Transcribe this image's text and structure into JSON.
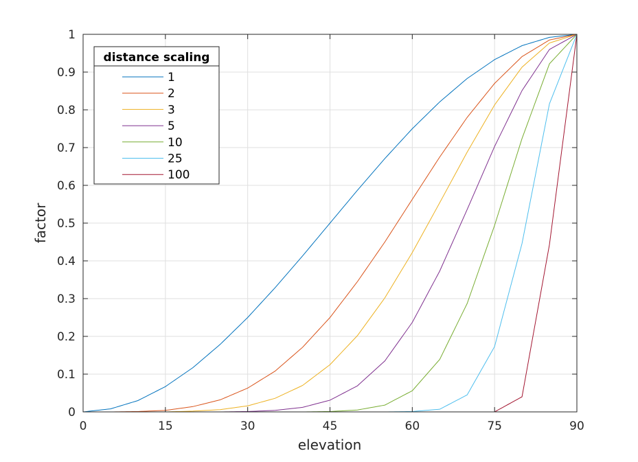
{
  "chart_data": {
    "type": "line",
    "xlabel": "elevation",
    "ylabel": "factor",
    "xlim": [
      0,
      90
    ],
    "ylim": [
      0,
      1
    ],
    "xticks": [
      0,
      15,
      30,
      45,
      60,
      75,
      90
    ],
    "yticks": [
      0,
      0.1,
      0.2,
      0.3,
      0.4,
      0.5,
      0.6,
      0.7,
      0.8,
      0.9,
      1
    ],
    "xtick_labels": [
      "0",
      "15",
      "30",
      "45",
      "60",
      "75",
      "90"
    ],
    "ytick_labels": [
      "0",
      "0.1",
      "0.2",
      "0.3",
      "0.4",
      "0.5",
      "0.6",
      "0.7",
      "0.8",
      "0.9",
      "1"
    ],
    "grid": true,
    "legend": {
      "title": "distance scaling",
      "placement": "top-left"
    },
    "x": [
      0,
      5,
      10,
      15,
      20,
      25,
      30,
      35,
      40,
      45,
      50,
      55,
      60,
      65,
      70,
      75,
      80,
      85,
      90
    ],
    "series": [
      {
        "name": "1",
        "color": "#0072BD",
        "values": [
          0,
          0.008,
          0.03,
          0.067,
          0.117,
          0.179,
          0.25,
          0.329,
          0.413,
          0.5,
          0.587,
          0.671,
          0.75,
          0.821,
          0.883,
          0.933,
          0.97,
          0.992,
          1
        ]
      },
      {
        "name": "2",
        "color": "#D95319",
        "values": [
          0,
          0.0,
          0.001,
          0.004,
          0.014,
          0.032,
          0.063,
          0.108,
          0.171,
          0.25,
          0.345,
          0.45,
          0.563,
          0.675,
          0.78,
          0.87,
          0.941,
          0.985,
          1
        ]
      },
      {
        "name": "3",
        "color": "#EDB120",
        "values": [
          0,
          0.0,
          0.0,
          0.0,
          0.002,
          0.006,
          0.016,
          0.036,
          0.07,
          0.125,
          0.202,
          0.302,
          0.422,
          0.554,
          0.688,
          0.813,
          0.913,
          0.977,
          1
        ]
      },
      {
        "name": "5",
        "color": "#7E2F8E",
        "values": [
          0,
          0.0,
          0.0,
          0.0,
          0.0,
          0.0,
          0.001,
          0.004,
          0.012,
          0.031,
          0.069,
          0.135,
          0.237,
          0.373,
          0.536,
          0.703,
          0.851,
          0.96,
          1
        ]
      },
      {
        "name": "10",
        "color": "#77AC30",
        "values": [
          0,
          0.0,
          0.0,
          0.0,
          0.0,
          0.0,
          0.0,
          0.0,
          0.0,
          0.001,
          0.005,
          0.018,
          0.056,
          0.139,
          0.287,
          0.494,
          0.724,
          0.922,
          1
        ]
      },
      {
        "name": "25",
        "color": "#4DBEEE",
        "values": [
          0,
          0.0,
          0.0,
          0.0,
          0.0,
          0.0,
          0.0,
          0.0,
          0.0,
          0.0,
          0.0,
          0.0,
          0.001,
          0.007,
          0.045,
          0.173,
          0.446,
          0.816,
          1
        ]
      },
      {
        "name": "100",
        "color": "#A2142F",
        "values": [
          0,
          0.0,
          0.0,
          0.0,
          0.0,
          0.0,
          0.0,
          0.0,
          0.0,
          0.0,
          0.0,
          0.0,
          0.0,
          0.0,
          0.0,
          0.0,
          0.04,
          0.443,
          1
        ]
      }
    ]
  }
}
